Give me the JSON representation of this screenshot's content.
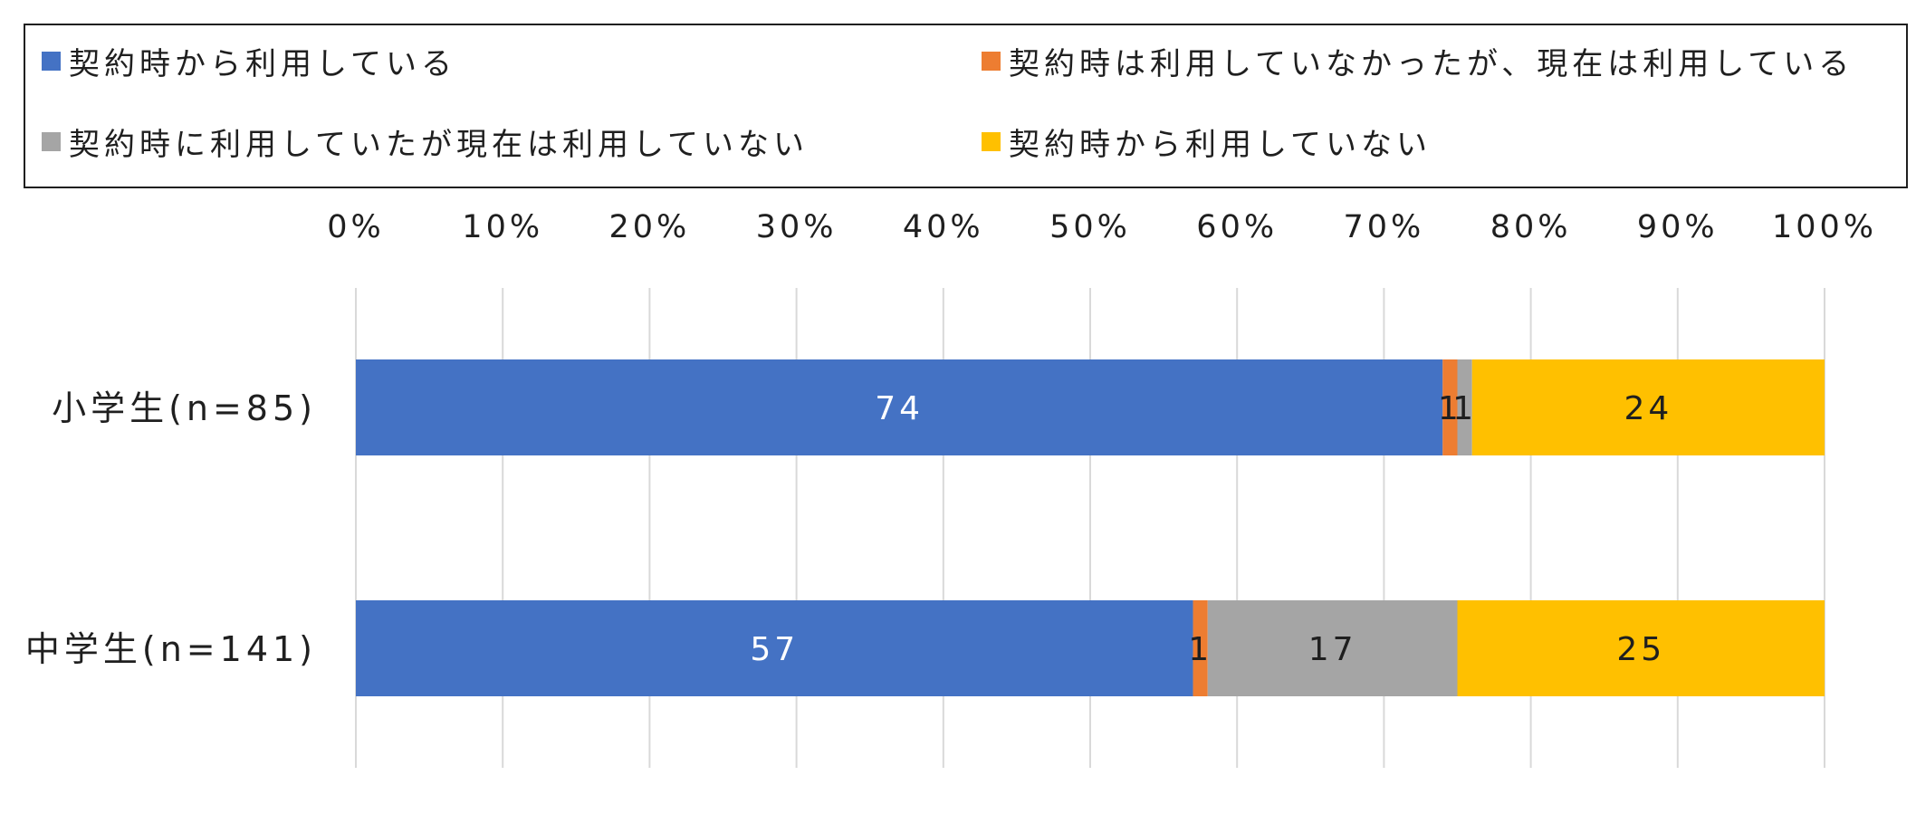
{
  "chart_data": {
    "type": "bar",
    "orientation": "horizontal",
    "stacked": "percent",
    "categories": [
      "小学生(n=85)",
      "中学生(n=141)"
    ],
    "series": [
      {
        "name": "契約時から利用している",
        "values": [
          74,
          57
        ],
        "color": "#4472C4",
        "label_color": "#ffffff"
      },
      {
        "name": "契約時は利用していなかったが、現在は利用している",
        "values": [
          1,
          1
        ],
        "color": "#ED7D31",
        "label_color": "#1f1f1f"
      },
      {
        "name": "契約時に利用していたが現在は利用していない",
        "values": [
          1,
          17
        ],
        "color": "#A5A5A5",
        "label_color": "#1f1f1f"
      },
      {
        "name": "契約時から利用していない",
        "values": [
          24,
          25
        ],
        "color": "#FFC000",
        "label_color": "#1f1f1f"
      }
    ],
    "xlim": [
      0,
      100
    ],
    "x_ticks": [
      "0%",
      "10%",
      "20%",
      "30%",
      "40%",
      "50%",
      "60%",
      "70%",
      "80%",
      "90%",
      "100%"
    ],
    "x_axis_position": "top",
    "grid": true,
    "legend_position": "top",
    "data_labels": true
  }
}
